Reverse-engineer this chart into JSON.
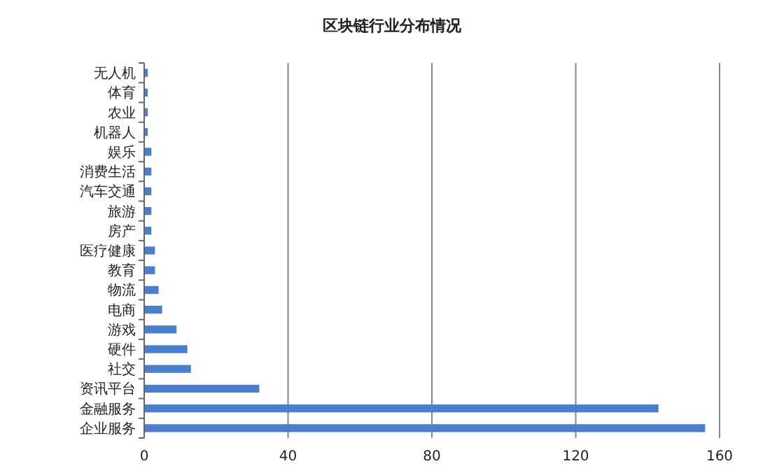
{
  "chart_data": {
    "type": "bar",
    "orientation": "horizontal",
    "title": "区块链行业分布情况",
    "categories": [
      "无人机",
      "体育",
      "农业",
      "机器人",
      "娱乐",
      "消费生活",
      "汽车交通",
      "旅游",
      "房产",
      "医疗健康",
      "教育",
      "物流",
      "电商",
      "游戏",
      "硬件",
      "社交",
      "资讯平台",
      "金融服务",
      "企业服务"
    ],
    "values": [
      1,
      1,
      1,
      1,
      2,
      2,
      2,
      2,
      2,
      3,
      3,
      4,
      5,
      9,
      12,
      13,
      32,
      143,
      156
    ],
    "color": "#4a7fd0",
    "xlim": [
      0,
      160
    ],
    "xticks": [
      0,
      40,
      80,
      120,
      160
    ],
    "grid": "x"
  }
}
